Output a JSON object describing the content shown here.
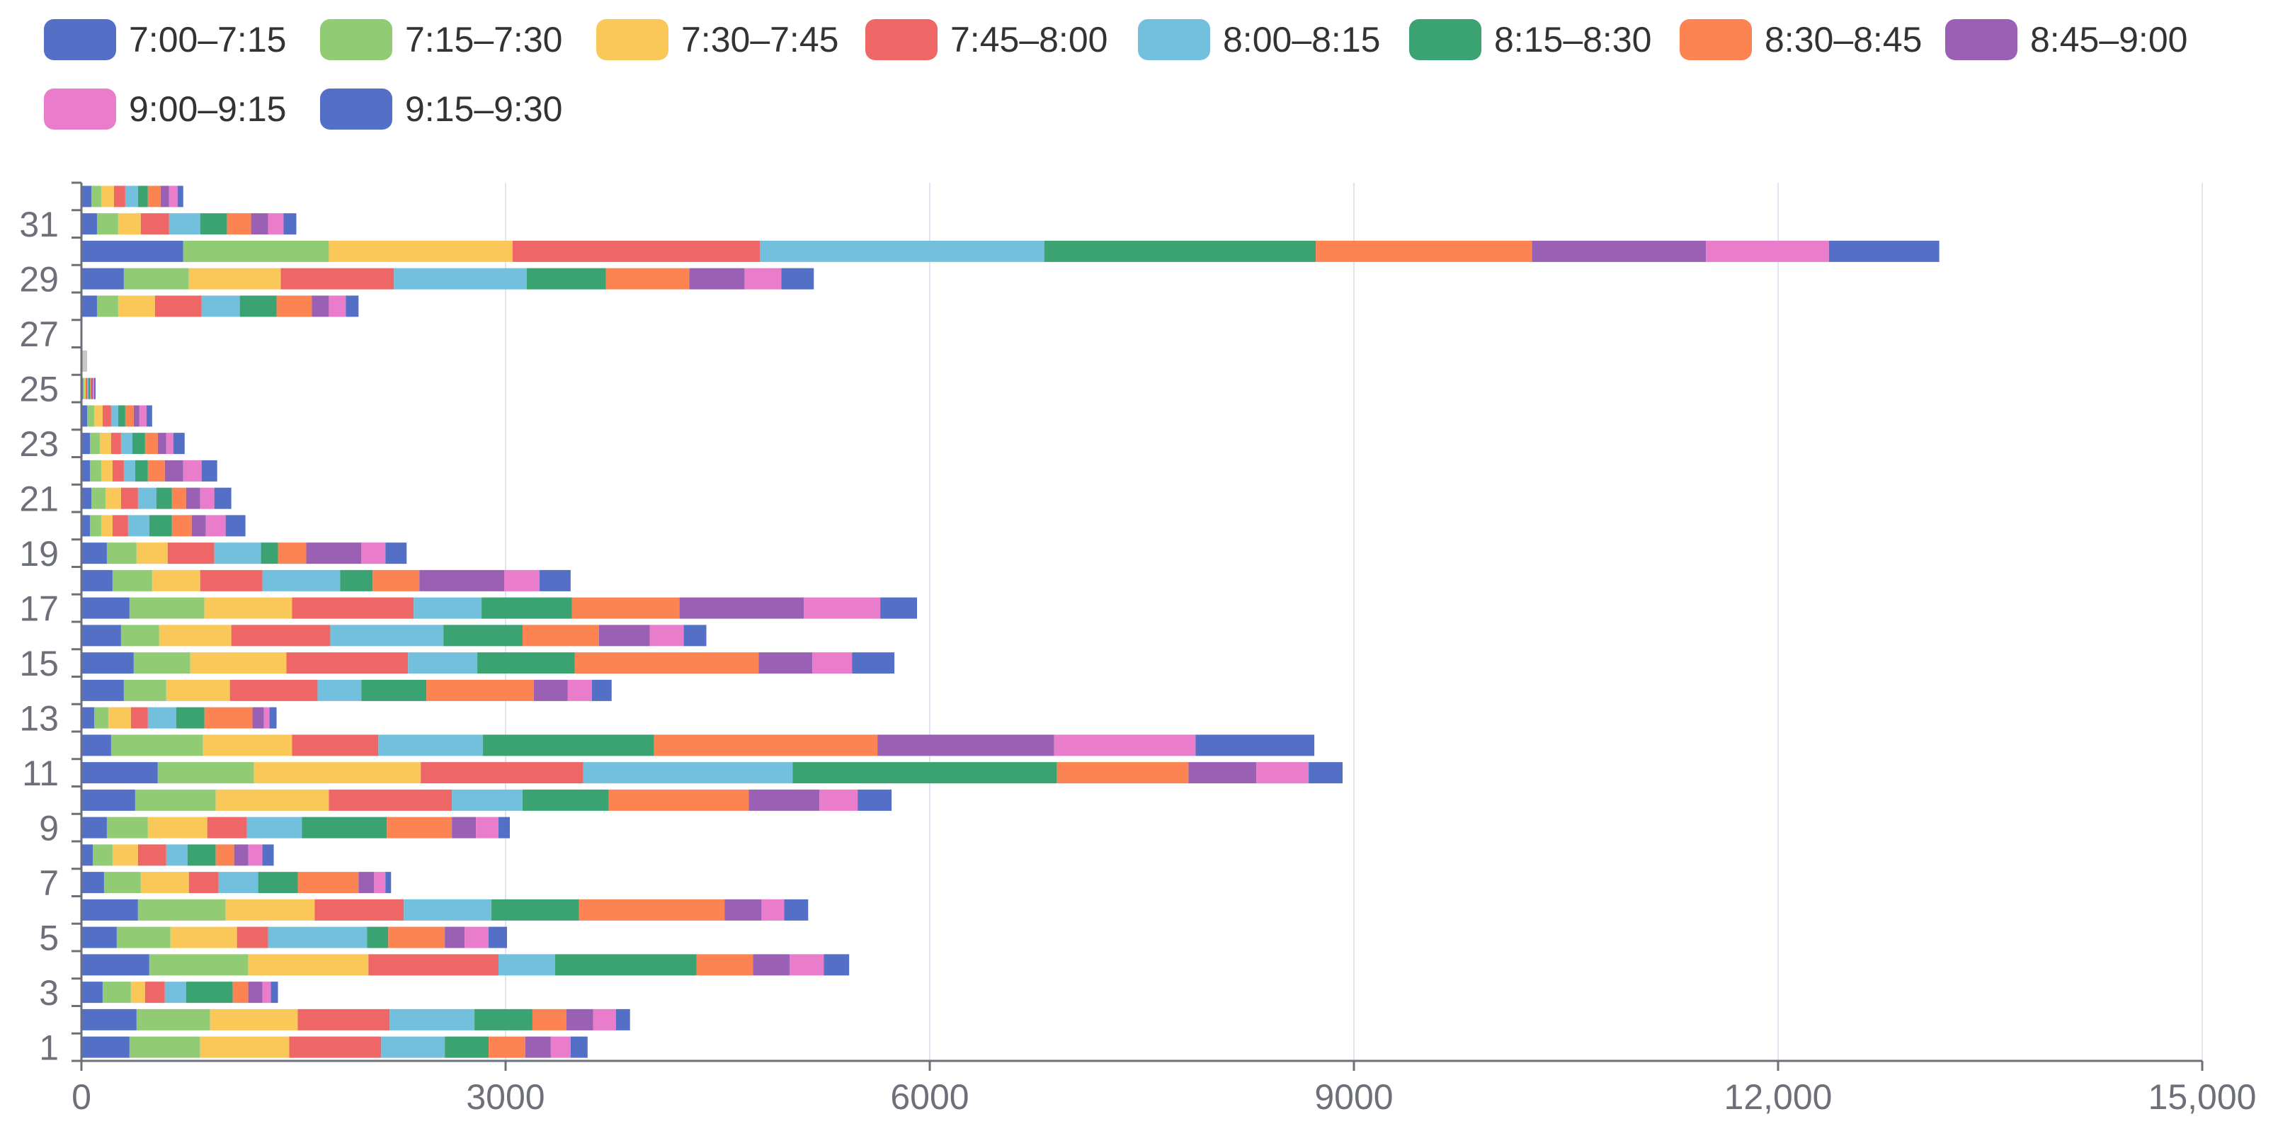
{
  "chart_data": {
    "type": "bar",
    "orientation": "horizontal",
    "stacked": true,
    "title": "",
    "xlabel": "",
    "ylabel": "",
    "xlim": [
      0,
      15000
    ],
    "x_ticks": [
      0,
      3000,
      6000,
      9000,
      12000,
      15000
    ],
    "x_tick_labels": [
      "0",
      "3000",
      "6000",
      "9000",
      "12,000",
      "15,000"
    ],
    "categories": [
      "1",
      "2",
      "3",
      "4",
      "5",
      "6",
      "7",
      "8",
      "9",
      "10",
      "11",
      "12",
      "13",
      "14",
      "15",
      "16",
      "17",
      "18",
      "19",
      "20",
      "21",
      "22",
      "23",
      "24",
      "25",
      "26",
      "27",
      "28",
      "29",
      "30",
      "31",
      "32"
    ],
    "y_tick_labels": [
      "1",
      "3",
      "5",
      "7",
      "9",
      "11",
      "13",
      "15",
      "17",
      "19",
      "21",
      "23",
      "25",
      "27",
      "29",
      "31"
    ],
    "legend_position": "top",
    "grid": true,
    "series": [
      {
        "name": "7:00–7:15",
        "color": "#5470c6",
        "values": [
          340,
          390,
          150,
          480,
          250,
          400,
          160,
          80,
          180,
          380,
          540,
          210,
          90,
          300,
          370,
          280,
          340,
          220,
          180,
          60,
          70,
          60,
          60,
          40,
          10,
          0,
          0,
          110,
          300,
          720,
          110,
          70
        ]
      },
      {
        "name": "7:15–7:30",
        "color": "#91cc75",
        "values": [
          500,
          520,
          200,
          700,
          380,
          620,
          260,
          140,
          290,
          570,
          680,
          650,
          100,
          300,
          400,
          270,
          530,
          280,
          210,
          80,
          100,
          80,
          70,
          50,
          10,
          0,
          0,
          150,
          460,
          1030,
          150,
          70
        ]
      },
      {
        "name": "7:30–7:45",
        "color": "#fac858",
        "values": [
          630,
          620,
          100,
          850,
          470,
          630,
          340,
          180,
          420,
          800,
          1180,
          630,
          160,
          450,
          680,
          510,
          620,
          340,
          220,
          80,
          110,
          80,
          80,
          60,
          10,
          0,
          0,
          260,
          650,
          1300,
          160,
          90
        ]
      },
      {
        "name": "7:45–8:00",
        "color": "#ee6666",
        "values": [
          650,
          650,
          140,
          920,
          220,
          630,
          210,
          200,
          280,
          870,
          1150,
          610,
          120,
          620,
          860,
          700,
          860,
          440,
          330,
          110,
          120,
          80,
          70,
          60,
          10,
          0,
          0,
          330,
          800,
          1750,
          200,
          80
        ]
      },
      {
        "name": "8:00–8:15",
        "color": "#73c0de",
        "values": [
          450,
          600,
          150,
          400,
          700,
          620,
          280,
          150,
          390,
          500,
          1480,
          740,
          200,
          310,
          490,
          800,
          480,
          550,
          330,
          150,
          130,
          80,
          80,
          50,
          10,
          0,
          0,
          270,
          940,
          2010,
          220,
          90
        ]
      },
      {
        "name": "8:15–8:30",
        "color": "#3ba272",
        "values": [
          310,
          410,
          330,
          1000,
          150,
          620,
          280,
          200,
          600,
          610,
          1870,
          1210,
          200,
          460,
          690,
          560,
          640,
          230,
          120,
          160,
          110,
          90,
          90,
          50,
          10,
          0,
          0,
          260,
          560,
          1920,
          190,
          70
        ]
      },
      {
        "name": "8:30–8:45",
        "color": "#fc8452",
        "values": [
          260,
          240,
          110,
          400,
          400,
          1030,
          430,
          130,
          460,
          990,
          930,
          1580,
          340,
          760,
          1300,
          540,
          760,
          330,
          200,
          140,
          100,
          120,
          90,
          60,
          10,
          0,
          0,
          250,
          590,
          1530,
          170,
          90
        ]
      },
      {
        "name": "8:45–9:00",
        "color": "#9a60b4",
        "values": [
          180,
          190,
          100,
          260,
          140,
          260,
          110,
          100,
          170,
          500,
          480,
          1250,
          80,
          240,
          380,
          360,
          880,
          600,
          390,
          100,
          100,
          130,
          60,
          40,
          10,
          0,
          0,
          120,
          390,
          1230,
          120,
          60
        ]
      },
      {
        "name": "9:00–9:15",
        "color": "#ea7ccc",
        "values": [
          140,
          160,
          60,
          240,
          170,
          160,
          80,
          100,
          160,
          270,
          370,
          1000,
          40,
          170,
          280,
          240,
          540,
          250,
          170,
          140,
          100,
          130,
          50,
          50,
          10,
          0,
          0,
          120,
          260,
          870,
          110,
          60
        ]
      },
      {
        "name": "9:15–9:30",
        "color": "#5470c6",
        "values": [
          120,
          100,
          50,
          180,
          130,
          170,
          40,
          80,
          80,
          240,
          240,
          840,
          50,
          140,
          300,
          160,
          260,
          220,
          150,
          140,
          120,
          110,
          80,
          40,
          10,
          0,
          0,
          90,
          230,
          780,
          90,
          40
        ]
      }
    ]
  }
}
